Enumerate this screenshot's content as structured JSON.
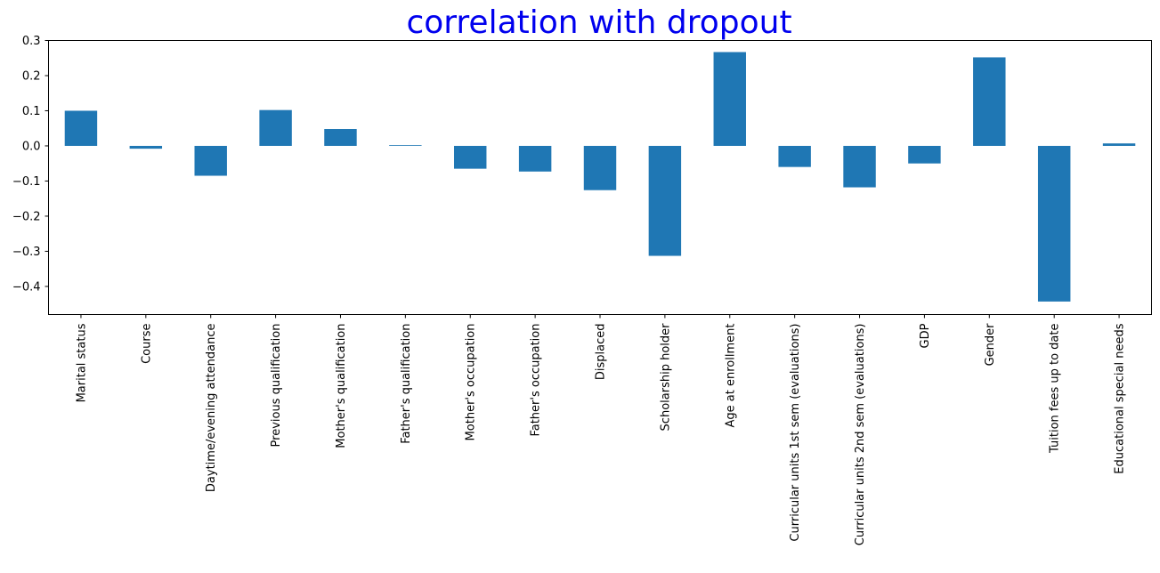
{
  "colors": {
    "bar": "#1f77b4",
    "title": "#0000ee",
    "axis": "#000000",
    "background": "#ffffff"
  },
  "chart_data": {
    "type": "bar",
    "title": "correlation with dropout",
    "xlabel": "",
    "ylabel": "",
    "ylim": [
      -0.48,
      0.3
    ],
    "yticks": [
      0.3,
      0.2,
      0.1,
      0.0,
      -0.1,
      -0.2,
      -0.3,
      -0.4
    ],
    "ytick_labels": [
      "0.3",
      "0.2",
      "0.1",
      "0.0",
      "−0.1",
      "−0.2",
      "−0.3",
      "−0.4"
    ],
    "grid": false,
    "legend": "none",
    "categories": [
      "Marital status",
      "Course",
      "Daytime/evening attendance",
      "Previous qualification",
      "Mother's qualification",
      "Father's qualification",
      "Mother's occupation",
      "Father's occupation",
      "Displaced",
      "Scholarship holder",
      "Age at enrollment",
      "Curricular units 1st sem (evaluations)",
      "Curricular units 2nd sem (evaluations)",
      "GDP",
      "Gender",
      "Tuition fees up to date",
      "Educational special needs"
    ],
    "values": [
      0.1,
      -0.008,
      -0.085,
      0.102,
      0.048,
      0.002,
      -0.065,
      -0.073,
      -0.126,
      -0.313,
      0.267,
      -0.06,
      -0.118,
      -0.05,
      0.252,
      -0.443,
      0.007
    ]
  }
}
